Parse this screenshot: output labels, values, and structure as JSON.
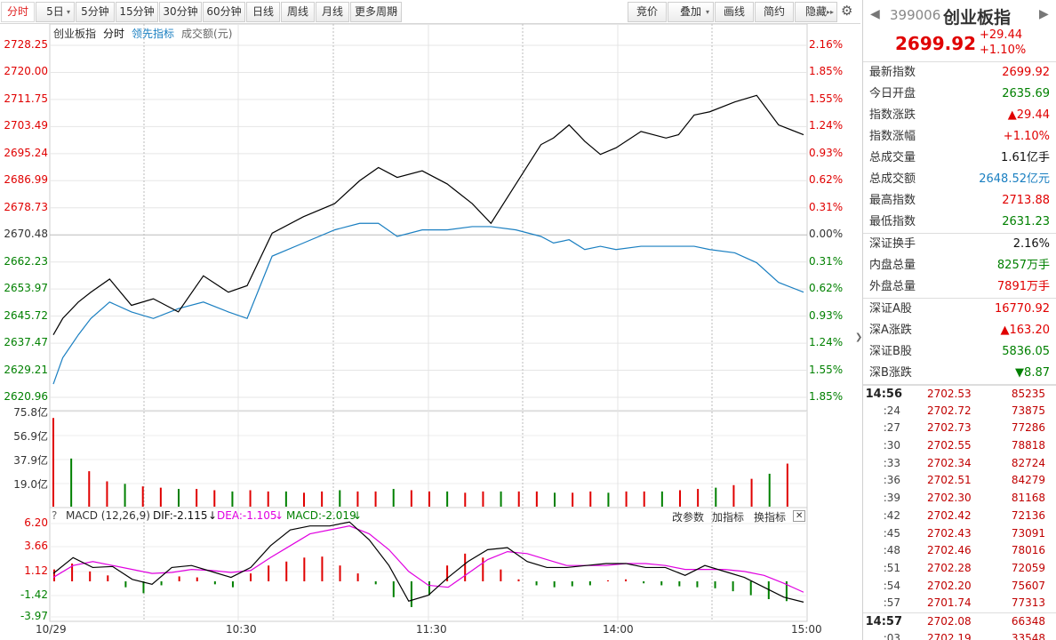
{
  "toolbar": {
    "left": [
      {
        "label": "分时",
        "active": true
      },
      {
        "label": "5日",
        "dropdown": true
      },
      {
        "label": "5分钟"
      },
      {
        "label": "15分钟"
      },
      {
        "label": "30分钟"
      },
      {
        "label": "60分钟"
      },
      {
        "label": "日线"
      },
      {
        "label": "周线"
      },
      {
        "label": "月线"
      },
      {
        "label": "更多周期",
        "dropdown": true
      }
    ],
    "right": [
      {
        "label": "竞价"
      },
      {
        "label": "叠加",
        "dropdown": true
      },
      {
        "label": "画线"
      },
      {
        "label": "简约"
      },
      {
        "label": "隐藏",
        "arrows": "▸▸"
      }
    ]
  },
  "legend": {
    "name": "创业板指",
    "mode": "分时",
    "indicator": "领先指标",
    "volume": "成交额(元)"
  },
  "price_axis": {
    "left": [
      "2728.25",
      "2720.00",
      "2711.75",
      "2703.49",
      "2695.24",
      "2686.99",
      "2678.73",
      "2670.48",
      "2662.23",
      "2653.97",
      "2645.72",
      "2637.47",
      "2629.21",
      "2620.96"
    ],
    "right": [
      "2.16%",
      "1.85%",
      "1.55%",
      "1.24%",
      "0.93%",
      "0.62%",
      "0.31%",
      "0.00%",
      "0.31%",
      "0.62%",
      "0.93%",
      "1.24%",
      "1.55%",
      "1.85%"
    ]
  },
  "volume_axis": [
    "75.8亿",
    "56.9亿",
    "37.9亿",
    "19.0亿"
  ],
  "macd": {
    "title": "MACD (12,26,9)",
    "dif": "DIF:-2.115",
    "dea": "DEA:-1.105",
    "macd": "MACD:-2.019",
    "arrow": "↓",
    "axis": [
      "6.20",
      "3.66",
      "1.12",
      "-1.42",
      "-3.97"
    ],
    "buttons": [
      "改参数",
      "加指标",
      "换指标"
    ]
  },
  "time_axis": [
    "10/29",
    "10:30",
    "11:30",
    "14:00",
    "15:00"
  ],
  "colors": {
    "up": "#e00000",
    "down": "#008000",
    "price": "#000000",
    "lead": "#1a7fc1",
    "dif": "#000000",
    "dea": "#e000e0"
  },
  "chart_data": {
    "type": "line",
    "prev_close": 2670.48,
    "ylim": [
      2620.96,
      2728.25
    ],
    "price_x_minutes": [
      0,
      3,
      8,
      12,
      18,
      25,
      32,
      40,
      48,
      56,
      62,
      70,
      80,
      90,
      98,
      104,
      110,
      118,
      126,
      134,
      140,
      148,
      156,
      160,
      165,
      170,
      175,
      180,
      188,
      196,
      200,
      205,
      210,
      218,
      225,
      232,
      240
    ],
    "price": [
      2640,
      2645,
      2650,
      2653,
      2657,
      2649,
      2651,
      2647,
      2658,
      2653,
      2655,
      2671,
      2676,
      2680,
      2687,
      2691,
      2688,
      2690,
      2686,
      2680,
      2674,
      2686,
      2698,
      2700,
      2704,
      2699,
      2695,
      2697,
      2702,
      2700,
      2701,
      2707,
      2708,
      2711,
      2713,
      2704,
      2701
    ],
    "lead": [
      2625,
      2633,
      2640,
      2645,
      2650,
      2647,
      2645,
      2648,
      2650,
      2647,
      2645,
      2664,
      2668,
      2672,
      2674,
      2674,
      2670,
      2672,
      2672,
      2673,
      2673,
      2672,
      2670,
      2668,
      2669,
      2666,
      2667,
      2666,
      2667,
      2667,
      2667,
      2667,
      2666,
      2665,
      2662,
      2656,
      2653
    ],
    "volume_yi": [
      70,
      38,
      28,
      20,
      18,
      16,
      15,
      14,
      14,
      13,
      12,
      13,
      12,
      12,
      11,
      12,
      13,
      12,
      12,
      14,
      13,
      12,
      12,
      11,
      12,
      12,
      12,
      12,
      11,
      11,
      12,
      11,
      12,
      12,
      12,
      13,
      14,
      15,
      17,
      22,
      26,
      34
    ],
    "macd_hist": [
      1.2,
      1.8,
      1.0,
      0.6,
      -0.6,
      -1.2,
      -0.4,
      0.5,
      0.4,
      -0.3,
      -0.6,
      0.8,
      1.6,
      2.0,
      2.4,
      2.5,
      1.6,
      0.8,
      -0.3,
      -1.6,
      -2.6,
      -1.4,
      1.6,
      2.8,
      2.4,
      1.2,
      0.2,
      -0.4,
      -0.6,
      -0.5,
      -0.4,
      0.1,
      0.2,
      -0.2,
      -0.4,
      -0.5,
      -0.6,
      -0.7,
      -1.0,
      -1.4,
      -1.8,
      -2.0
    ],
    "dif": [
      0.8,
      2.4,
      1.4,
      1.5,
      0.2,
      -0.3,
      1.4,
      1.6,
      1.0,
      0.4,
      1.4,
      3.6,
      5.2,
      5.6,
      5.6,
      6.0,
      4.2,
      1.6,
      -2.0,
      -1.4,
      0.4,
      2.0,
      3.2,
      3.4,
      2.0,
      1.4,
      1.4,
      1.6,
      1.8,
      1.8,
      1.4,
      1.4,
      0.6,
      1.6,
      1.0,
      0.4,
      -0.6,
      -1.6,
      -2.1
    ],
    "dea": [
      0.4,
      1.6,
      2.0,
      1.6,
      1.2,
      0.8,
      0.9,
      1.2,
      1.1,
      0.9,
      1.1,
      2.4,
      3.6,
      4.8,
      5.2,
      5.6,
      4.8,
      3.2,
      1.0,
      -0.4,
      -0.6,
      0.8,
      2.2,
      3.0,
      2.8,
      2.2,
      1.6,
      1.6,
      1.6,
      1.8,
      1.8,
      1.6,
      1.2,
      1.2,
      1.2,
      1.0,
      0.6,
      -0.2,
      -1.1
    ]
  },
  "panel": {
    "code": "399006",
    "name": "创业板指",
    "price": "2699.92",
    "change": "+29.44",
    "change_pct": "+1.10%",
    "stats1": [
      {
        "k": "最新指数",
        "v": "2699.92",
        "c": "red"
      },
      {
        "k": "今日开盘",
        "v": "2635.69",
        "c": "grn"
      },
      {
        "k": "指数涨跌",
        "v": "▲29.44",
        "c": "red"
      },
      {
        "k": "指数涨幅",
        "v": "+1.10%",
        "c": "red"
      },
      {
        "k": "总成交量",
        "v": "1.61亿手",
        "c": "blk"
      },
      {
        "k": "总成交额",
        "v": "2648.52亿元",
        "c": "blu"
      },
      {
        "k": "最高指数",
        "v": "2713.88",
        "c": "red"
      },
      {
        "k": "最低指数",
        "v": "2631.23",
        "c": "grn"
      }
    ],
    "stats2": [
      {
        "k": "深证换手",
        "v": "2.16%",
        "c": "blk"
      },
      {
        "k": "内盘总量",
        "v": "8257万手",
        "c": "grn"
      },
      {
        "k": "外盘总量",
        "v": "7891万手",
        "c": "red"
      }
    ],
    "stats3": [
      {
        "k": "深证A股",
        "v": "16770.92",
        "c": "red"
      },
      {
        "k": "深A涨跌",
        "v": "▲163.20",
        "c": "red"
      },
      {
        "k": "深证B股",
        "v": "5836.05",
        "c": "grn"
      },
      {
        "k": "深B涨跌",
        "v": "▼8.87",
        "c": "grn"
      }
    ],
    "ticks": [
      {
        "t": "14:56",
        "p": "2702.53",
        "v": "85235",
        "bold": true
      },
      {
        "t": ":24",
        "p": "2702.72",
        "v": "73875"
      },
      {
        "t": ":27",
        "p": "2702.73",
        "v": "77286"
      },
      {
        "t": ":30",
        "p": "2702.55",
        "v": "78818"
      },
      {
        "t": ":33",
        "p": "2702.34",
        "v": "82724"
      },
      {
        "t": ":36",
        "p": "2702.51",
        "v": "84279"
      },
      {
        "t": ":39",
        "p": "2702.30",
        "v": "81168"
      },
      {
        "t": ":42",
        "p": "2702.42",
        "v": "72136"
      },
      {
        "t": ":45",
        "p": "2702.43",
        "v": "73091"
      },
      {
        "t": ":48",
        "p": "2702.46",
        "v": "78016"
      },
      {
        "t": ":51",
        "p": "2702.28",
        "v": "72059"
      },
      {
        "t": ":54",
        "p": "2702.20",
        "v": "75607"
      },
      {
        "t": ":57",
        "p": "2701.74",
        "v": "77313"
      },
      {
        "t": "14:57",
        "p": "2702.08",
        "v": "66348",
        "bold": true
      },
      {
        "t": ":03",
        "p": "2702.19",
        "v": "33548"
      }
    ]
  }
}
